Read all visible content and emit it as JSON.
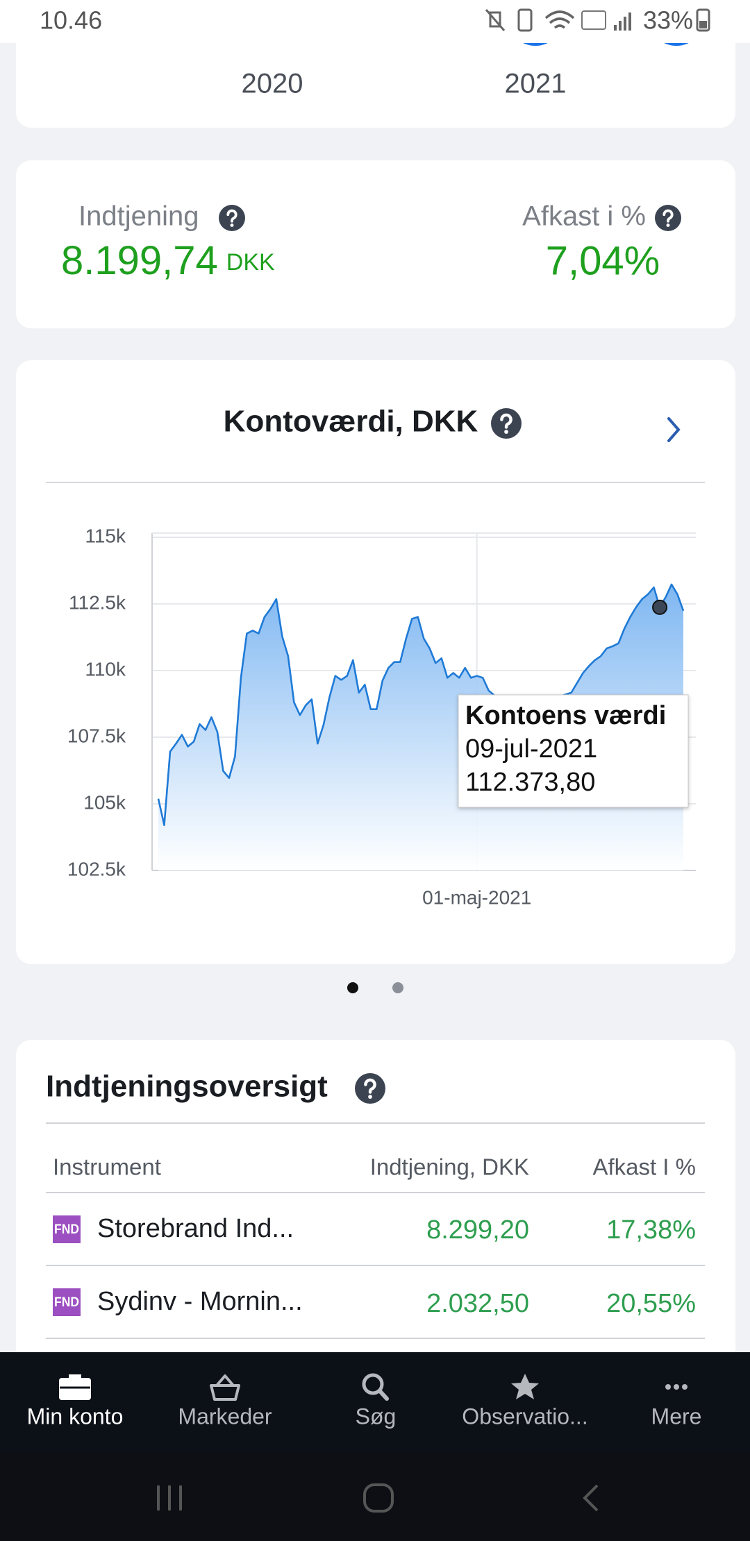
{
  "status_bar": {
    "time": "10.46",
    "battery": "33%"
  },
  "year_card": {
    "years": [
      "2020",
      "2021"
    ]
  },
  "summary": {
    "earnings_label": "Indtjening",
    "earnings_value": "8.199,74",
    "earnings_currency": "DKK",
    "return_label": "Afkast i %",
    "return_value": "7,04%"
  },
  "chart_data": {
    "type": "line",
    "title": "Kontoværdi, DKK",
    "color": "#1f7ad6",
    "grid": true,
    "ylim": [
      102500,
      115000
    ],
    "yticks": [
      {
        "value": 102500,
        "label": "102.5k"
      },
      {
        "value": 105000,
        "label": "105k"
      },
      {
        "value": 107500,
        "label": "107.5k"
      },
      {
        "value": 110000,
        "label": "110k"
      },
      {
        "value": 112500,
        "label": "112.5k"
      },
      {
        "value": 115000,
        "label": "115k"
      }
    ],
    "categories": [
      null,
      null,
      null,
      null,
      null,
      null,
      null,
      null,
      null,
      null,
      null,
      null,
      null,
      null,
      null,
      null,
      null,
      null,
      null,
      null,
      null,
      null,
      null,
      null,
      null,
      null,
      null,
      null,
      null,
      null,
      null,
      null,
      null,
      null,
      null,
      null,
      null,
      null,
      null,
      null,
      null,
      null,
      null,
      null,
      null,
      null,
      null,
      null,
      null,
      null,
      null,
      null,
      null,
      null,
      "01-maj-2021",
      null,
      null,
      null,
      null,
      null,
      null,
      null,
      null,
      null,
      null,
      null,
      null,
      null,
      null,
      null,
      null,
      null,
      null,
      null,
      null,
      null,
      null,
      null,
      null,
      null,
      null,
      null,
      null,
      null,
      null,
      null,
      null,
      null,
      null,
      null
    ],
    "values": [
      105190,
      104200,
      106960,
      107260,
      107590,
      107150,
      107330,
      107990,
      107770,
      108250,
      107700,
      106230,
      105970,
      106780,
      109730,
      111390,
      111500,
      111390,
      112010,
      112310,
      112680,
      111280,
      110540,
      108810,
      108330,
      108700,
      108920,
      107260,
      107960,
      108990,
      109800,
      109650,
      109800,
      110390,
      109170,
      109470,
      108550,
      108550,
      109620,
      110100,
      110320,
      110320,
      111200,
      111940,
      112010,
      111200,
      110830,
      110280,
      110460,
      109730,
      109910,
      109730,
      110100,
      109730,
      109800,
      109730,
      109250,
      109060,
      108990,
      108920,
      108880,
      108840,
      108810,
      108810,
      108840,
      108880,
      108920,
      108950,
      109030,
      109100,
      109170,
      109540,
      109910,
      110170,
      110390,
      110540,
      110830,
      110910,
      111020,
      111570,
      112010,
      112380,
      112680,
      112860,
      113120,
      112373.8,
      112750,
      113230,
      112860,
      112240
    ],
    "tooltip": {
      "title": "Kontoens værdi",
      "date": "09-jul-2021",
      "value": 112373.8,
      "value_label": "112.373,80"
    }
  },
  "earnings_overview": {
    "title": "Indtjeningsoversigt",
    "columns": [
      "Instrument",
      "Indtjening, DKK",
      "Afkast I %"
    ],
    "rows": [
      {
        "badge": "FND",
        "name": "Storebrand Ind...",
        "earnings": "8.299,20",
        "return": "17,38%"
      },
      {
        "badge": "FND",
        "name": "Sydinv - Mornin...",
        "earnings": "2.032,50",
        "return": "20,55%"
      }
    ]
  },
  "bottom_nav": [
    "Min konto",
    "Markeder",
    "Søg",
    "Observatio...",
    "Mere"
  ]
}
